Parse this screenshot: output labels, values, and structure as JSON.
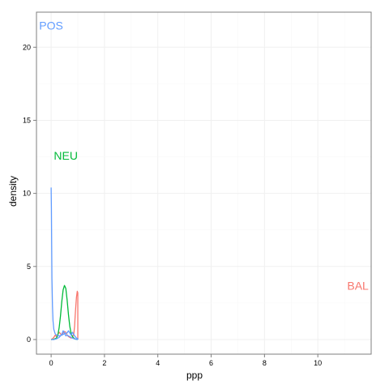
{
  "chart_data": {
    "type": "line",
    "xlabel": "ppp",
    "ylabel": "density",
    "xlim": [
      -0.55,
      12.0
    ],
    "ylim": [
      -1.0,
      22.4
    ],
    "x_ticks": [
      0,
      2,
      4,
      6,
      8,
      10
    ],
    "y_ticks": [
      0,
      5,
      10,
      15,
      20
    ],
    "x_tick_labels": [
      "0",
      "2",
      "4",
      "6",
      "8",
      "10"
    ],
    "y_tick_labels": [
      "0",
      "5",
      "10",
      "15",
      "20"
    ],
    "grid": true,
    "legend": "none",
    "series": [
      {
        "color": "#f8766d",
        "x": [
          0.0,
          0.05,
          0.1,
          0.15,
          0.2,
          0.25,
          0.3,
          0.35,
          0.4,
          0.45,
          0.5,
          0.55,
          0.6,
          0.65,
          0.7,
          0.75,
          0.8,
          0.85,
          0.88,
          0.9,
          0.93,
          0.95,
          0.98,
          1.0,
          1.0
        ],
        "y": [
          0.0,
          0.05,
          0.15,
          0.3,
          0.2,
          0.35,
          0.5,
          0.4,
          0.3,
          0.45,
          0.55,
          0.5,
          0.3,
          0.2,
          0.15,
          0.1,
          0.15,
          0.4,
          0.9,
          1.6,
          2.4,
          2.9,
          3.3,
          3.2,
          0.0
        ]
      },
      {
        "color": "#00ba38",
        "x": [
          0.0,
          0.1,
          0.2,
          0.25,
          0.3,
          0.35,
          0.4,
          0.45,
          0.5,
          0.55,
          0.6,
          0.65,
          0.7,
          0.75,
          0.8,
          0.85,
          0.9,
          1.0
        ],
        "y": [
          0.0,
          0.02,
          0.1,
          0.3,
          0.8,
          1.6,
          2.6,
          3.4,
          3.7,
          3.5,
          2.7,
          1.7,
          0.9,
          0.4,
          0.2,
          0.1,
          0.03,
          0.0
        ]
      },
      {
        "color": "#619cff",
        "x": [
          0.0,
          0.01,
          0.02,
          0.03,
          0.05,
          0.07,
          0.1,
          0.15,
          0.2,
          0.3,
          0.4,
          0.5,
          0.6,
          0.65,
          0.7,
          0.75,
          0.8,
          0.85,
          0.9,
          0.95,
          1.0,
          1.0
        ],
        "y": [
          10.4,
          9.0,
          6.5,
          4.2,
          2.3,
          1.3,
          0.7,
          0.4,
          0.3,
          0.25,
          0.3,
          0.4,
          0.45,
          0.6,
          0.45,
          0.3,
          0.5,
          0.35,
          0.2,
          0.1,
          0.05,
          0.0
        ]
      },
      {
        "color": "#619cff",
        "x": [
          0.0,
          0.1,
          0.2,
          0.3,
          0.4,
          0.45,
          0.5,
          0.55,
          0.6,
          0.7,
          0.8,
          0.9,
          1.0
        ],
        "y": [
          0.0,
          0.0,
          0.05,
          0.15,
          0.35,
          0.6,
          0.45,
          0.25,
          0.3,
          0.2,
          0.1,
          0.03,
          0.0
        ]
      }
    ],
    "annotations": [
      {
        "text": "POS",
        "x": -0.45,
        "y": 21.2,
        "color": "#619cff"
      },
      {
        "text": "NEU",
        "x": 0.1,
        "y": 12.3,
        "color": "#00ba38"
      },
      {
        "text": "BAL",
        "x": 11.1,
        "y": 3.4,
        "color": "#f8766d"
      }
    ]
  }
}
